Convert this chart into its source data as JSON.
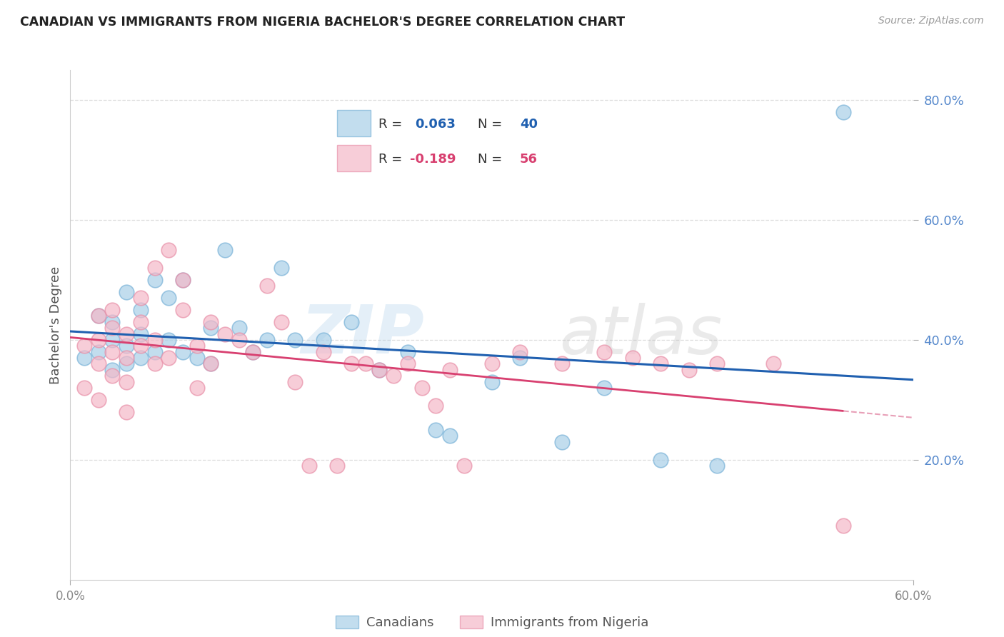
{
  "title": "CANADIAN VS IMMIGRANTS FROM NIGERIA BACHELOR'S DEGREE CORRELATION CHART",
  "source": "Source: ZipAtlas.com",
  "ylabel": "Bachelor's Degree",
  "xlim": [
    0.0,
    0.6
  ],
  "ylim": [
    0.0,
    0.85
  ],
  "watermark_line1": "ZIP",
  "watermark_line2": "atlas",
  "legend_r_can": "0.063",
  "legend_n_can": "40",
  "legend_r_nig": "-0.189",
  "legend_n_nig": "56",
  "canadian_fill": "#a8cfe8",
  "canadian_edge": "#7ab3d8",
  "nigeria_fill": "#f5b8c8",
  "nigeria_edge": "#e890a8",
  "trend_blue": "#2060b0",
  "trend_pink_solid": "#d84070",
  "trend_pink_dash": "#e8a0b8",
  "tick_color": "#5588cc",
  "grid_color": "#dddddd",
  "background": "#ffffff",
  "canadians_x": [
    0.01,
    0.02,
    0.02,
    0.03,
    0.03,
    0.03,
    0.04,
    0.04,
    0.04,
    0.05,
    0.05,
    0.05,
    0.06,
    0.06,
    0.07,
    0.07,
    0.08,
    0.08,
    0.09,
    0.1,
    0.1,
    0.11,
    0.12,
    0.13,
    0.14,
    0.15,
    0.16,
    0.18,
    0.2,
    0.22,
    0.24,
    0.26,
    0.27,
    0.3,
    0.32,
    0.35,
    0.38,
    0.42,
    0.46,
    0.55
  ],
  "canadians_y": [
    0.37,
    0.44,
    0.38,
    0.43,
    0.4,
    0.35,
    0.48,
    0.39,
    0.36,
    0.45,
    0.41,
    0.37,
    0.5,
    0.38,
    0.47,
    0.4,
    0.5,
    0.38,
    0.37,
    0.42,
    0.36,
    0.55,
    0.42,
    0.38,
    0.4,
    0.52,
    0.4,
    0.4,
    0.43,
    0.35,
    0.38,
    0.25,
    0.24,
    0.33,
    0.37,
    0.23,
    0.32,
    0.2,
    0.19,
    0.78
  ],
  "nigeria_x": [
    0.01,
    0.01,
    0.02,
    0.02,
    0.02,
    0.02,
    0.03,
    0.03,
    0.03,
    0.03,
    0.04,
    0.04,
    0.04,
    0.04,
    0.05,
    0.05,
    0.05,
    0.06,
    0.06,
    0.06,
    0.07,
    0.07,
    0.08,
    0.08,
    0.09,
    0.09,
    0.1,
    0.1,
    0.11,
    0.12,
    0.13,
    0.14,
    0.15,
    0.16,
    0.17,
    0.18,
    0.19,
    0.2,
    0.21,
    0.22,
    0.23,
    0.24,
    0.25,
    0.26,
    0.27,
    0.28,
    0.3,
    0.32,
    0.35,
    0.38,
    0.4,
    0.42,
    0.44,
    0.46,
    0.5,
    0.55
  ],
  "nigeria_y": [
    0.39,
    0.32,
    0.44,
    0.4,
    0.36,
    0.3,
    0.45,
    0.42,
    0.38,
    0.34,
    0.41,
    0.37,
    0.33,
    0.28,
    0.47,
    0.43,
    0.39,
    0.52,
    0.4,
    0.36,
    0.55,
    0.37,
    0.5,
    0.45,
    0.39,
    0.32,
    0.43,
    0.36,
    0.41,
    0.4,
    0.38,
    0.49,
    0.43,
    0.33,
    0.19,
    0.38,
    0.19,
    0.36,
    0.36,
    0.35,
    0.34,
    0.36,
    0.32,
    0.29,
    0.35,
    0.19,
    0.36,
    0.38,
    0.36,
    0.38,
    0.37,
    0.36,
    0.35,
    0.36,
    0.36,
    0.09
  ]
}
